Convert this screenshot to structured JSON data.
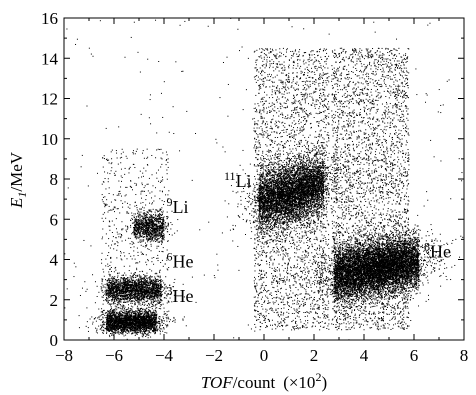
{
  "chart_data": {
    "type": "scatter",
    "title": "",
    "x_label": {
      "var": "TOF",
      "rest": "/count",
      "multiplier": "(×10",
      "multiplier_exp": "2",
      "close": ")"
    },
    "y_label": {
      "var": "E",
      "sub": "1",
      "unit": "/MeV"
    },
    "xlim": [
      -8,
      8
    ],
    "ylim": [
      0,
      16
    ],
    "x_ticks": [
      -8,
      -6,
      -4,
      -2,
      0,
      2,
      4,
      6,
      8
    ],
    "y_ticks": [
      0,
      2,
      4,
      6,
      8,
      10,
      12,
      14,
      16
    ],
    "x_tick_labels": [
      "−8",
      "−6",
      "−4",
      "−2",
      "0",
      "2",
      "4",
      "6",
      "8"
    ],
    "y_tick_labels": [
      "0",
      "2",
      "4",
      "6",
      "8",
      "10",
      "12",
      "14",
      "16"
    ],
    "grid": false,
    "point_color": "#000000",
    "annotations": [
      {
        "mass": "9",
        "element": "Li",
        "x": -3.9,
        "y": 6.3
      },
      {
        "mass": "11",
        "element": "Li",
        "x": -1.6,
        "y": 7.6
      },
      {
        "mass": "6",
        "element": "He",
        "x": -3.9,
        "y": 3.6
      },
      {
        "mass": "3",
        "element": "He",
        "x": -3.9,
        "y": 1.9
      },
      {
        "mass": "8",
        "element": "He",
        "x": 6.4,
        "y": 4.1
      }
    ],
    "clusters": [
      {
        "name": "3He",
        "x_center": -5.3,
        "x_width": 2.0,
        "y_center": 0.9,
        "y_width": 0.6,
        "x_range": [
          -6.3,
          -4.3
        ],
        "y_range": [
          0.4,
          1.4
        ],
        "n": 2600
      },
      {
        "name": "6He",
        "x_center": -5.2,
        "x_width": 2.0,
        "y_center": 2.5,
        "y_width": 0.7,
        "x_range": [
          -6.3,
          -4.1
        ],
        "y_range": [
          1.9,
          3.1
        ],
        "n": 2000
      },
      {
        "name": "9Li",
        "x_center": -4.5,
        "x_width": 1.1,
        "y_center": 5.6,
        "y_width": 0.8,
        "x_range": [
          -5.2,
          -4.0
        ],
        "y_range": [
          4.8,
          6.4
        ],
        "n": 1000
      },
      {
        "name": "11Li",
        "x_center": 1.1,
        "x_width": 2.6,
        "y_center": 7.3,
        "y_width": 1.6,
        "x_range": [
          -0.2,
          2.4
        ],
        "y_range": [
          5.0,
          9.0
        ],
        "n": 5500
      },
      {
        "name": "8He",
        "x_center": 4.5,
        "x_width": 3.2,
        "y_center": 3.6,
        "y_width": 1.5,
        "x_range": [
          2.8,
          6.2
        ],
        "y_range": [
          1.9,
          5.0
        ],
        "n": 8500
      }
    ],
    "background_regions": [
      {
        "x_range": [
          -6.5,
          -3.8
        ],
        "y_range": [
          0.3,
          9.5
        ],
        "n": 700
      },
      {
        "x_range": [
          -0.4,
          2.6
        ],
        "y_range": [
          0.5,
          14.5
        ],
        "n": 2800
      },
      {
        "x_range": [
          2.7,
          5.8
        ],
        "y_range": [
          0.5,
          14.5
        ],
        "n": 3200
      },
      {
        "x_range": [
          -8,
          8
        ],
        "y_range": [
          0,
          16
        ],
        "n": 250
      }
    ]
  }
}
